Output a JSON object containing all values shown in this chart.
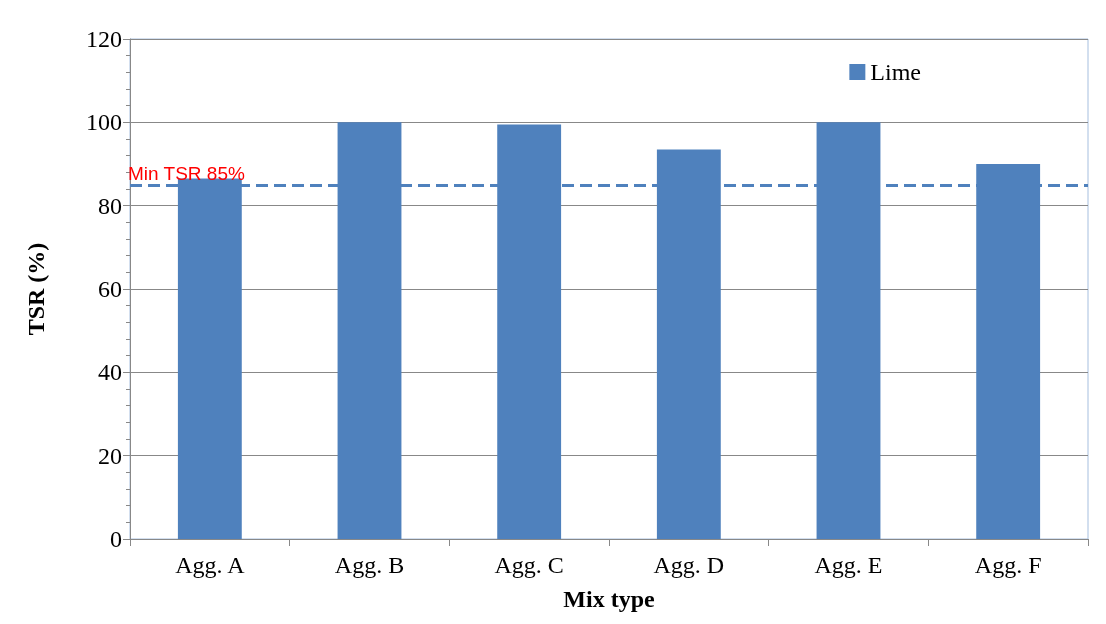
{
  "chart_data": {
    "type": "bar",
    "xlabel": "Mix type",
    "ylabel": "TSR (%)",
    "categories": [
      "Agg. A",
      "Agg. B",
      "Agg. C",
      "Agg. D",
      "Agg. E",
      "Agg. F"
    ],
    "series": [
      {
        "name": "Lime",
        "color": "#4f81bd",
        "values": [
          86.5,
          100,
          99.5,
          93.5,
          100,
          90
        ]
      }
    ],
    "ylim": [
      0,
      120
    ],
    "yticks": [
      0,
      20,
      40,
      60,
      80,
      100,
      120
    ],
    "grid": "y",
    "legend": "top right",
    "ref_lines": [
      {
        "axis": "y",
        "value": 85,
        "label": "Min TSR 85%",
        "color": "#4f81bd",
        "line_style": "dashed"
      }
    ]
  }
}
